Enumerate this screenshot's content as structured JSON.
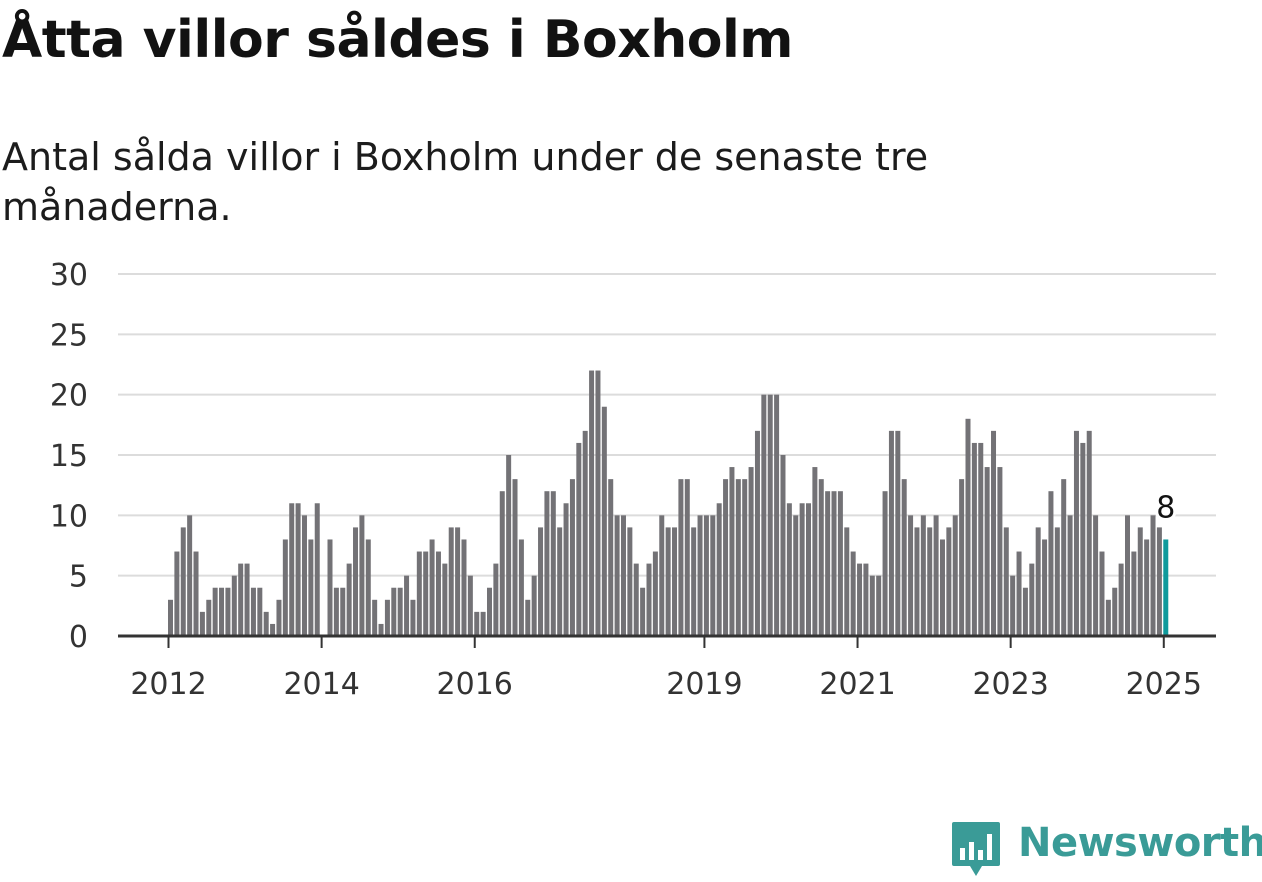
{
  "title": "Åtta villor såldes i Boxholm",
  "subtitle": "Antal sålda villor i Boxholm under de senaste tre månaderna.",
  "brand": {
    "name": "Newsworthy",
    "color": "#3a9b97",
    "icon": "bar-chart-logo-icon"
  },
  "colors": {
    "bars": "#737276",
    "highlight": "#0f9a9c",
    "grid": "#dcdcdc",
    "axis": "#333333"
  },
  "chart_data": {
    "type": "bar",
    "title": "Åtta villor såldes i Boxholm",
    "subtitle": "Antal sålda villor i Boxholm under de senaste tre månaderna.",
    "xlabel": "",
    "ylabel": "",
    "ylim": [
      0,
      30
    ],
    "yticks": [
      0,
      5,
      10,
      15,
      20,
      25,
      30
    ],
    "xticks": [
      "2012",
      "2014",
      "2016",
      "2019",
      "2021",
      "2023",
      "2025"
    ],
    "grid": true,
    "start": "2012-01",
    "end": "2025-01",
    "frequency": "monthly",
    "highlight_label": "8",
    "values": [
      3,
      7,
      9,
      10,
      7,
      2,
      3,
      4,
      4,
      4,
      5,
      6,
      6,
      4,
      4,
      2,
      1,
      3,
      8,
      11,
      11,
      10,
      8,
      11,
      0,
      8,
      4,
      4,
      6,
      9,
      10,
      8,
      3,
      1,
      3,
      4,
      4,
      5,
      3,
      7,
      7,
      8,
      7,
      6,
      9,
      9,
      8,
      5,
      2,
      2,
      4,
      6,
      12,
      15,
      13,
      8,
      3,
      5,
      9,
      12,
      12,
      9,
      11,
      13,
      16,
      17,
      22,
      22,
      19,
      13,
      10,
      10,
      9,
      6,
      4,
      6,
      7,
      10,
      9,
      9,
      13,
      13,
      9,
      10,
      10,
      10,
      11,
      13,
      14,
      13,
      13,
      14,
      17,
      20,
      20,
      20,
      15,
      11,
      10,
      11,
      11,
      14,
      13,
      12,
      12,
      12,
      9,
      7,
      6,
      6,
      5,
      5,
      12,
      17,
      17,
      13,
      10,
      9,
      10,
      9,
      10,
      8,
      9,
      10,
      13,
      18,
      16,
      16,
      14,
      17,
      14,
      9,
      5,
      7,
      4,
      6,
      9,
      8,
      12,
      9,
      13,
      10,
      17,
      16,
      17,
      10,
      7,
      3,
      4,
      6,
      10,
      7,
      9,
      8,
      10,
      9,
      8
    ]
  }
}
